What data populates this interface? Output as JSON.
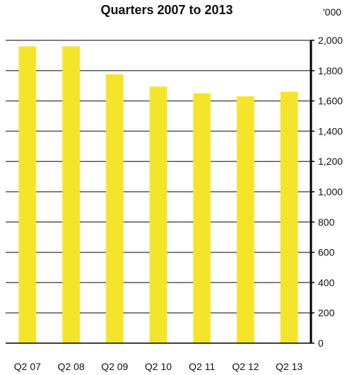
{
  "chart_data": {
    "type": "bar",
    "title": "Quarters 2007 to 2013",
    "unit_label": "'000",
    "categories": [
      "Q2 07",
      "Q2 08",
      "Q2 09",
      "Q2 10",
      "Q2 11",
      "Q2 12",
      "Q2 13"
    ],
    "values": [
      1960,
      1960,
      1775,
      1695,
      1650,
      1630,
      1660
    ],
    "ylim": [
      0,
      2000
    ],
    "yticks": [
      0,
      200,
      400,
      600,
      800,
      1000,
      1200,
      1400,
      1600,
      1800,
      2000
    ],
    "ytick_labels": [
      "0",
      "200",
      "400",
      "600",
      "800",
      "1,000",
      "1,200",
      "1,400",
      "1,600",
      "1,800",
      "2,000"
    ],
    "axis_side": "right",
    "grid": true,
    "bar_color": "#f5e52a",
    "grid_color": "#555555",
    "axis_color": "#000000"
  }
}
